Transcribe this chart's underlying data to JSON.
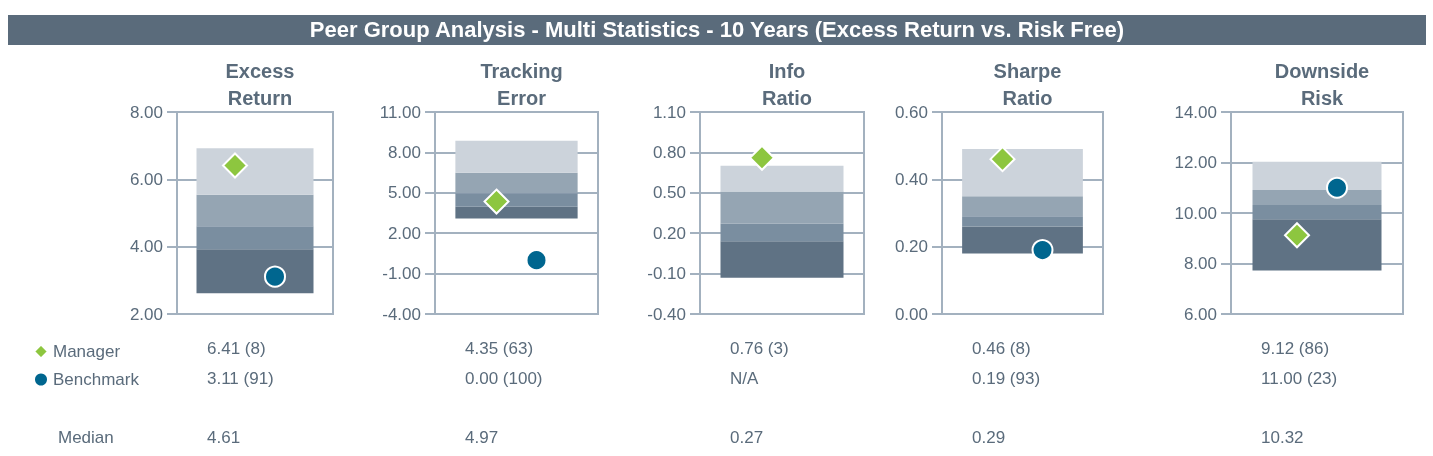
{
  "chart_data": [
    {
      "type": "bar",
      "title": "Peer Group Analysis - Multi Statistics - 10 Years (Excess Return vs. Risk Free)",
      "subtitle": "Excess Return",
      "categories": [
        null
      ],
      "series": [
        {
          "color": "#5f7284",
          "base": [
            2.62
          ],
          "values": [
            1.3
          ]
        },
        {
          "color": "#7a8ea0",
          "base": [
            3.92
          ],
          "values": [
            0.69
          ]
        },
        {
          "color": "#95a5b3",
          "base": [
            4.61
          ],
          "values": [
            0.93
          ]
        },
        {
          "color": "#ccd3db",
          "base": [
            5.54
          ],
          "values": [
            1.38
          ]
        },
        {
          "name": "Manager",
          "type": "scatter",
          "marker": "diamond",
          "color": "#8dc63f",
          "values": [
            6.41
          ]
        },
        {
          "name": "Benchmark",
          "type": "scatter",
          "marker": "circle",
          "color": "#00668f",
          "values": [
            3.11
          ]
        }
      ],
      "ylim": [
        2,
        8
      ],
      "yticks": [
        {
          "value": 2,
          "label": "2.00"
        },
        {
          "value": 4,
          "label": "4.00"
        },
        {
          "value": 6,
          "label": "6.00"
        },
        {
          "value": 8,
          "label": "8.00"
        }
      ],
      "grid": "y",
      "tick_labels": "y",
      "legend": "bottom left",
      "annotations": [
        "6.41 (8)",
        "3.11 (91)",
        "4.61",
        "Median"
      ]
    },
    {
      "type": "bar",
      "subtitle": "Tracking Error",
      "categories": [
        null
      ],
      "series": [
        {
          "color": "#5f7284",
          "base": [
            3.1
          ],
          "values": [
            0.86
          ]
        },
        {
          "color": "#7a8ea0",
          "base": [
            3.96
          ],
          "values": [
            1.01
          ]
        },
        {
          "color": "#95a5b3",
          "base": [
            4.97
          ],
          "values": [
            1.52
          ]
        },
        {
          "color": "#ccd3db",
          "base": [
            6.49
          ],
          "values": [
            2.37
          ]
        },
        {
          "type": "scatter",
          "marker": "diamond",
          "color": "#8dc63f",
          "values": [
            4.35
          ]
        },
        {
          "type": "scatter",
          "marker": "circle",
          "color": "#00668f",
          "values": [
            0
          ]
        }
      ],
      "ylim": [
        -4,
        11
      ],
      "yticks": [
        {
          "value": -4,
          "label": "-4.00"
        },
        {
          "value": -1,
          "label": "-1.00"
        },
        {
          "value": 2,
          "label": "2.00"
        },
        {
          "value": 5,
          "label": "5.00"
        },
        {
          "value": 8,
          "label": "8.00"
        },
        {
          "value": 11,
          "label": "11.00"
        }
      ],
      "grid": "y",
      "tick_labels": "y",
      "annotations": [
        "4.35 (63)",
        "0.00 (100)",
        "4.97"
      ]
    },
    {
      "type": "bar",
      "subtitle": "Info Ratio",
      "categories": [
        null
      ],
      "series": [
        {
          "color": "#5f7284",
          "base": [
            -0.13
          ],
          "values": [
            0.27
          ]
        },
        {
          "color": "#7a8ea0",
          "base": [
            0.14
          ],
          "values": [
            0.13
          ]
        },
        {
          "color": "#95a5b3",
          "base": [
            0.27
          ],
          "values": [
            0.24
          ]
        },
        {
          "color": "#ccd3db",
          "base": [
            0.51
          ],
          "values": [
            0.19
          ]
        },
        {
          "type": "scatter",
          "marker": "diamond",
          "color": "#8dc63f",
          "values": [
            0.76
          ]
        },
        {
          "type": "scatter",
          "marker": "circle",
          "color": "#00668f",
          "values": [
            null
          ]
        }
      ],
      "ylim": [
        -0.4,
        1.1
      ],
      "yticks": [
        {
          "value": -0.4,
          "label": "-0.40"
        },
        {
          "value": -0.1,
          "label": "-0.10"
        },
        {
          "value": 0.2,
          "label": "0.20"
        },
        {
          "value": 0.5,
          "label": "0.50"
        },
        {
          "value": 0.8,
          "label": "0.80"
        },
        {
          "value": 1.1,
          "label": "1.10"
        }
      ],
      "grid": "y",
      "tick_labels": "y",
      "annotations": [
        "0.76 (3)",
        "N/A",
        "0.27"
      ]
    },
    {
      "type": "bar",
      "subtitle": "Sharpe Ratio",
      "categories": [
        null
      ],
      "series": [
        {
          "color": "#5f7284",
          "base": [
            0.18
          ],
          "values": [
            0.08
          ]
        },
        {
          "color": "#7a8ea0",
          "base": [
            0.26
          ],
          "values": [
            0.03
          ]
        },
        {
          "color": "#95a5b3",
          "base": [
            0.29
          ],
          "values": [
            0.06
          ]
        },
        {
          "color": "#ccd3db",
          "base": [
            0.35
          ],
          "values": [
            0.14
          ]
        },
        {
          "type": "scatter",
          "marker": "diamond",
          "color": "#8dc63f",
          "values": [
            0.46
          ]
        },
        {
          "type": "scatter",
          "marker": "circle",
          "color": "#00668f",
          "values": [
            0.19
          ]
        }
      ],
      "ylim": [
        0,
        0.6
      ],
      "yticks": [
        {
          "value": 0,
          "label": "0.00"
        },
        {
          "value": 0.2,
          "label": "0.20"
        },
        {
          "value": 0.4,
          "label": "0.40"
        },
        {
          "value": 0.6,
          "label": "0.60"
        }
      ],
      "grid": "y",
      "tick_labels": "y",
      "annotations": [
        "0.46 (8)",
        "0.19 (93)",
        "0.29"
      ]
    },
    {
      "type": "bar",
      "subtitle": "Downside Risk",
      "categories": [
        null
      ],
      "series": [
        {
          "color": "#5f7284",
          "base": [
            7.72
          ],
          "values": [
            2.03
          ]
        },
        {
          "color": "#7a8ea0",
          "base": [
            9.75
          ],
          "values": [
            0.57
          ]
        },
        {
          "color": "#95a5b3",
          "base": [
            10.32
          ],
          "values": [
            0.59
          ]
        },
        {
          "color": "#ccd3db",
          "base": [
            10.91
          ],
          "values": [
            1.12
          ]
        },
        {
          "type": "scatter",
          "marker": "diamond",
          "color": "#8dc63f",
          "values": [
            9.12
          ]
        },
        {
          "type": "scatter",
          "marker": "circle",
          "color": "#00668f",
          "values": [
            11
          ]
        }
      ],
      "ylim": [
        6,
        14
      ],
      "yticks": [
        {
          "value": 6,
          "label": "6.00"
        },
        {
          "value": 8,
          "label": "8.00"
        },
        {
          "value": 10,
          "label": "10.00"
        },
        {
          "value": 12,
          "label": "12.00"
        },
        {
          "value": 14,
          "label": "14.00"
        }
      ],
      "grid": "y",
      "tick_labels": "y",
      "annotations": [
        "9.12 (86)",
        "11.00 (23)",
        "10.32"
      ]
    }
  ]
}
